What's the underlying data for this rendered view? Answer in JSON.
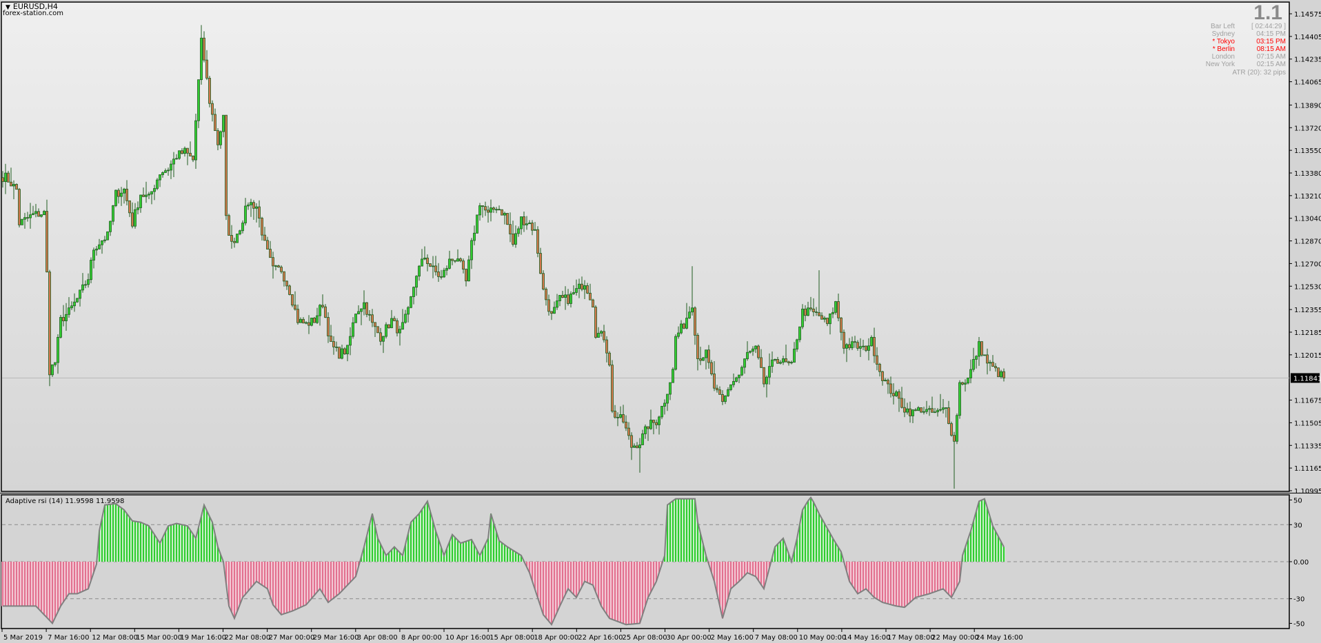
{
  "window": {
    "symbol_timeframe": "EURUSD,H4",
    "watermark": "forex-station.com"
  },
  "info_panel": {
    "spread_big": "1.1",
    "rows": [
      {
        "label": "Bar Left",
        "value": "[ 02:44:29 ]",
        "highlight": false
      },
      {
        "label": "Sydney",
        "value": "04:15 PM",
        "highlight": false
      },
      {
        "label": "* Tokyo",
        "value": "03:15 PM",
        "highlight": true
      },
      {
        "label": "* Berlin",
        "value": "08:15 AM",
        "highlight": true
      },
      {
        "label": "London",
        "value": "07:15 AM",
        "highlight": false
      },
      {
        "label": "New York",
        "value": "02:15 AM",
        "highlight": false
      }
    ],
    "atr": "ATR (20): 32 pips"
  },
  "colors": {
    "bull": "#32cd32",
    "bear": "#d2784e",
    "candle_outline": "#1f5c1f",
    "hist_pos": "#2ecc2e",
    "hist_neg": "#e2708f",
    "rsi_line": "#7f7f7f"
  },
  "price_axis": {
    "labels": [
      "1.14575",
      "1.14405",
      "1.14235",
      "1.14065",
      "1.13890",
      "1.13720",
      "1.13550",
      "1.13380",
      "1.13210",
      "1.13040",
      "1.12870",
      "1.12700",
      "1.12530",
      "1.12355",
      "1.12185",
      "1.12015",
      "1.11675",
      "1.11505",
      "1.11335",
      "1.11165",
      "1.10995"
    ],
    "current_price": "1.11841"
  },
  "time_axis": {
    "labels": [
      "5 Mar 2019",
      "7 Mar 16:00",
      "12 Mar 08:00",
      "15 Mar 00:00",
      "19 Mar 16:00",
      "22 Mar 08:00",
      "27 Mar 00:00",
      "29 Mar 16:00",
      "3 Apr 08:00",
      "8 Apr 00:00",
      "10 Apr 16:00",
      "15 Apr 08:00",
      "18 Apr 00:00",
      "22 Apr 16:00",
      "25 Apr 08:00",
      "30 Apr 00:00",
      "2 May 16:00",
      "7 May 08:00",
      "10 May 00:00",
      "14 May 16:00",
      "17 May 08:00",
      "22 May 00:00",
      "24 May 16:00"
    ]
  },
  "indicator": {
    "title": "Adaptive rsi (14) 11.9598 11.9598",
    "levels": [
      "50",
      "30",
      "0.00",
      "-30",
      "-50"
    ]
  },
  "chart_data": {
    "type": "candlestick",
    "price_range": [
      1.10995,
      1.14575
    ],
    "close_path": [
      [
        1,
        1.1335
      ],
      [
        5,
        1.13255
      ],
      [
        6,
        1.13002
      ],
      [
        11,
        1.13066
      ],
      [
        15,
        1.13078
      ],
      [
        16,
        1.12623
      ],
      [
        17,
        1.11896
      ],
      [
        19,
        1.11959
      ],
      [
        21,
        1.12275
      ],
      [
        24,
        1.12338
      ],
      [
        27,
        1.12433
      ],
      [
        31,
        1.12591
      ],
      [
        33,
        1.12813
      ],
      [
        36,
        1.12876
      ],
      [
        38,
        1.12908
      ],
      [
        41,
        1.13224
      ],
      [
        44,
        1.13255
      ],
      [
        47,
        1.13002
      ],
      [
        50,
        1.13224
      ],
      [
        53,
        1.13192
      ],
      [
        57,
        1.13382
      ],
      [
        60,
        1.13413
      ],
      [
        63,
        1.13508
      ],
      [
        66,
        1.1354
      ],
      [
        69,
        1.13477
      ],
      [
        72,
        1.14362
      ],
      [
        73,
        1.14235
      ],
      [
        75,
        1.13919
      ],
      [
        78,
        1.13603
      ],
      [
        80,
        1.13793
      ],
      [
        81,
        1.13034
      ],
      [
        83,
        1.12844
      ],
      [
        86,
        1.12971
      ],
      [
        89,
        1.1316
      ],
      [
        92,
        1.13129
      ],
      [
        95,
        1.12844
      ],
      [
        98,
        1.12655
      ],
      [
        101,
        1.12655
      ],
      [
        104,
        1.12497
      ],
      [
        107,
        1.12275
      ],
      [
        110,
        1.12244
      ],
      [
        113,
        1.12275
      ],
      [
        116,
        1.12402
      ],
      [
        119,
        1.12086
      ],
      [
        122,
        1.12022
      ],
      [
        125,
        1.12054
      ],
      [
        128,
        1.12338
      ],
      [
        131,
        1.12402
      ],
      [
        134,
        1.12244
      ],
      [
        137,
        1.12149
      ],
      [
        141,
        1.12275
      ],
      [
        144,
        1.1218
      ],
      [
        147,
        1.12338
      ],
      [
        150,
        1.12623
      ],
      [
        153,
        1.12749
      ],
      [
        156,
        1.12655
      ],
      [
        159,
        1.12591
      ],
      [
        162,
        1.12718
      ],
      [
        165,
        1.12749
      ],
      [
        168,
        1.1256
      ],
      [
        170,
        1.12844
      ],
      [
        173,
        1.1316
      ],
      [
        176,
        1.13066
      ],
      [
        179,
        1.13129
      ],
      [
        182,
        1.13066
      ],
      [
        185,
        1.12844
      ],
      [
        188,
        1.13034
      ],
      [
        191,
        1.13002
      ],
      [
        193,
        1.12939
      ],
      [
        196,
        1.12497
      ],
      [
        199,
        1.12307
      ],
      [
        202,
        1.12433
      ],
      [
        205,
        1.12433
      ],
      [
        208,
        1.12497
      ],
      [
        211,
        1.1256
      ],
      [
        214,
        1.12402
      ],
      [
        215,
        1.1218
      ],
      [
        218,
        1.12149
      ],
      [
        220,
        1.11959
      ],
      [
        221,
        1.1158
      ],
      [
        225,
        1.11516
      ],
      [
        228,
        1.11327
      ],
      [
        231,
        1.11358
      ],
      [
        234,
        1.11485
      ],
      [
        237,
        1.11516
      ],
      [
        240,
        1.11675
      ],
      [
        243,
        1.11896
      ],
      [
        244,
        1.12149
      ],
      [
        247,
        1.12244
      ],
      [
        250,
        1.12402
      ],
      [
        252,
        1.11991
      ],
      [
        255,
        1.12022
      ],
      [
        258,
        1.11769
      ],
      [
        261,
        1.11643
      ],
      [
        264,
        1.11801
      ],
      [
        267,
        1.11864
      ],
      [
        270,
        1.12022
      ],
      [
        273,
        1.12054
      ],
      [
        276,
        1.11801
      ],
      [
        280,
        1.11991
      ],
      [
        283,
        1.11959
      ],
      [
        286,
        1.11927
      ],
      [
        288,
        1.12149
      ],
      [
        290,
        1.12338
      ],
      [
        293,
        1.12338
      ],
      [
        296,
        1.12307
      ],
      [
        299,
        1.12244
      ],
      [
        302,
        1.12402
      ],
      [
        305,
        1.12086
      ],
      [
        309,
        1.12086
      ],
      [
        312,
        1.12054
      ],
      [
        315,
        1.12117
      ],
      [
        318,
        1.11896
      ],
      [
        321,
        1.11769
      ],
      [
        324,
        1.11706
      ],
      [
        327,
        1.11611
      ],
      [
        330,
        1.1158
      ],
      [
        333,
        1.11611
      ],
      [
        336,
        1.1158
      ],
      [
        339,
        1.1158
      ],
      [
        342,
        1.11611
      ],
      [
        345,
        1.11358
      ],
      [
        347,
        1.11801
      ],
      [
        350,
        1.11833
      ],
      [
        353,
        1.12022
      ],
      [
        354,
        1.12086
      ],
      [
        357,
        1.11959
      ],
      [
        360,
        1.11896
      ],
      [
        363,
        1.11841
      ]
    ],
    "extremes": [
      [
        17,
        "low",
        1.1178
      ],
      [
        72,
        "high",
        1.1449
      ],
      [
        231,
        "low",
        1.1113
      ],
      [
        250,
        "high",
        1.1268
      ],
      [
        296,
        "high",
        1.1265
      ],
      [
        345,
        "low",
        1.1101
      ]
    ],
    "rsi_path": [
      [
        0,
        -36
      ],
      [
        3,
        -36
      ],
      [
        12,
        -36
      ],
      [
        15,
        -43
      ],
      [
        18,
        -50
      ],
      [
        21,
        -36
      ],
      [
        24,
        -26
      ],
      [
        27,
        -26
      ],
      [
        31,
        -22
      ],
      [
        34,
        -2
      ],
      [
        35,
        25
      ],
      [
        37,
        46
      ],
      [
        41,
        47
      ],
      [
        44,
        42
      ],
      [
        47,
        33
      ],
      [
        50,
        32
      ],
      [
        53,
        29
      ],
      [
        57,
        15
      ],
      [
        60,
        29
      ],
      [
        63,
        31
      ],
      [
        67,
        29
      ],
      [
        70,
        19
      ],
      [
        73,
        46
      ],
      [
        76,
        32
      ],
      [
        78,
        12
      ],
      [
        80,
        0
      ],
      [
        82,
        -36
      ],
      [
        84,
        -46
      ],
      [
        87,
        -29
      ],
      [
        92,
        -16
      ],
      [
        96,
        -22
      ],
      [
        98,
        -35
      ],
      [
        101,
        -43
      ],
      [
        105,
        -40
      ],
      [
        110,
        -35
      ],
      [
        115,
        -22
      ],
      [
        118,
        -33
      ],
      [
        122,
        -26
      ],
      [
        125,
        -19
      ],
      [
        128,
        -12
      ],
      [
        131,
        12
      ],
      [
        134,
        39
      ],
      [
        136,
        19
      ],
      [
        139,
        5
      ],
      [
        142,
        12
      ],
      [
        145,
        5
      ],
      [
        148,
        32
      ],
      [
        151,
        39
      ],
      [
        154,
        49
      ],
      [
        157,
        25
      ],
      [
        160,
        5
      ],
      [
        163,
        22
      ],
      [
        166,
        15
      ],
      [
        170,
        18
      ],
      [
        173,
        5
      ],
      [
        176,
        19
      ],
      [
        177,
        39
      ],
      [
        180,
        17
      ],
      [
        183,
        12
      ],
      [
        188,
        5
      ],
      [
        191,
        -9
      ],
      [
        196,
        -43
      ],
      [
        199,
        -51
      ],
      [
        202,
        -36
      ],
      [
        205,
        -22
      ],
      [
        208,
        -29
      ],
      [
        211,
        -16
      ],
      [
        214,
        -19
      ],
      [
        217,
        -36
      ],
      [
        220,
        -46
      ],
      [
        226,
        -51
      ],
      [
        231,
        -50
      ],
      [
        234,
        -29
      ],
      [
        237,
        -16
      ],
      [
        240,
        5
      ],
      [
        241,
        46
      ],
      [
        244,
        51
      ],
      [
        251,
        51
      ],
      [
        252,
        32
      ],
      [
        255,
        5
      ],
      [
        258,
        -16
      ],
      [
        261,
        -46
      ],
      [
        264,
        -22
      ],
      [
        267,
        -16
      ],
      [
        270,
        -9
      ],
      [
        273,
        -12
      ],
      [
        276,
        -22
      ],
      [
        280,
        12
      ],
      [
        283,
        19
      ],
      [
        286,
        0
      ],
      [
        288,
        19
      ],
      [
        290,
        42
      ],
      [
        293,
        53
      ],
      [
        296,
        39
      ],
      [
        301,
        19
      ],
      [
        304,
        8
      ],
      [
        307,
        -16
      ],
      [
        310,
        -26
      ],
      [
        313,
        -22
      ],
      [
        316,
        -29
      ],
      [
        319,
        -33
      ],
      [
        324,
        -36
      ],
      [
        327,
        -37
      ],
      [
        331,
        -29
      ],
      [
        336,
        -26
      ],
      [
        341,
        -22
      ],
      [
        344,
        -29
      ],
      [
        347,
        -16
      ],
      [
        348,
        5
      ],
      [
        351,
        25
      ],
      [
        354,
        49
      ],
      [
        356,
        51
      ],
      [
        359,
        29
      ],
      [
        363,
        11.9598
      ]
    ],
    "rsi_range": [
      -50,
      50
    ]
  }
}
